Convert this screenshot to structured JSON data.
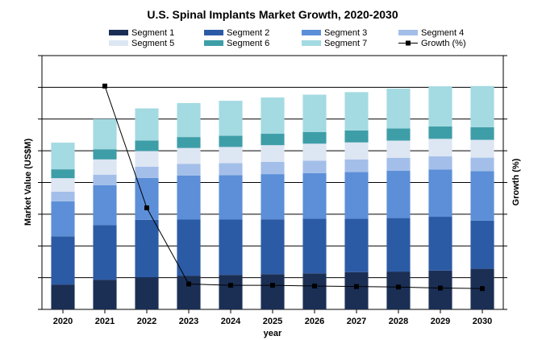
{
  "chart_data": {
    "type": "bar",
    "stacked": true,
    "title": "U.S. Spinal Implants Market Growth, 2020-2030",
    "xlabel": "year",
    "ylabel": "Market Value (US$M)",
    "y2label": "Growth (%)",
    "ylim": [
      0,
      1000
    ],
    "y2lim": [
      0,
      100
    ],
    "grid": true,
    "legend_position": "top",
    "categories": [
      "2020",
      "2021",
      "2022",
      "2023",
      "2024",
      "2025",
      "2026",
      "2027",
      "2028",
      "2029",
      "2030"
    ],
    "series": [
      {
        "name": "Segment 1",
        "color": "#1b2f55",
        "values": [
          98,
          117,
          127,
          133,
          136,
          139,
          142,
          147,
          149,
          153,
          160
        ]
      },
      {
        "name": "Segment 2",
        "color": "#2c5ba6",
        "values": [
          190,
          215,
          226,
          221,
          218,
          216,
          215,
          210,
          211,
          212,
          190
        ]
      },
      {
        "name": "Segment 3",
        "color": "#5c8fd8",
        "values": [
          138,
          157,
          165,
          173,
          175,
          178,
          180,
          184,
          186,
          186,
          195
        ]
      },
      {
        "name": "Segment 4",
        "color": "#a3bfe9",
        "values": [
          38,
          42,
          44,
          46,
          47,
          48,
          49,
          50,
          51,
          52,
          53
        ]
      },
      {
        "name": "Segment 5",
        "color": "#dde6f3",
        "values": [
          53,
          60,
          62,
          63,
          64,
          66,
          67,
          67,
          68,
          69,
          70
        ]
      },
      {
        "name": "Segment 6",
        "color": "#3e9ea8",
        "values": [
          35,
          40,
          41,
          43,
          44,
          45,
          46,
          47,
          48,
          49,
          50
        ]
      },
      {
        "name": "Segment 7",
        "color": "#a4dae2",
        "values": [
          105,
          119,
          127,
          134,
          138,
          143,
          147,
          151,
          157,
          158,
          162
        ]
      }
    ],
    "line_series": {
      "name": "Growth (%)",
      "axis": "y2",
      "color": "#000000",
      "values": [
        null,
        88,
        40,
        10,
        9.5,
        9.5,
        9.2,
        9,
        8.8,
        8.4,
        8.2
      ]
    }
  }
}
